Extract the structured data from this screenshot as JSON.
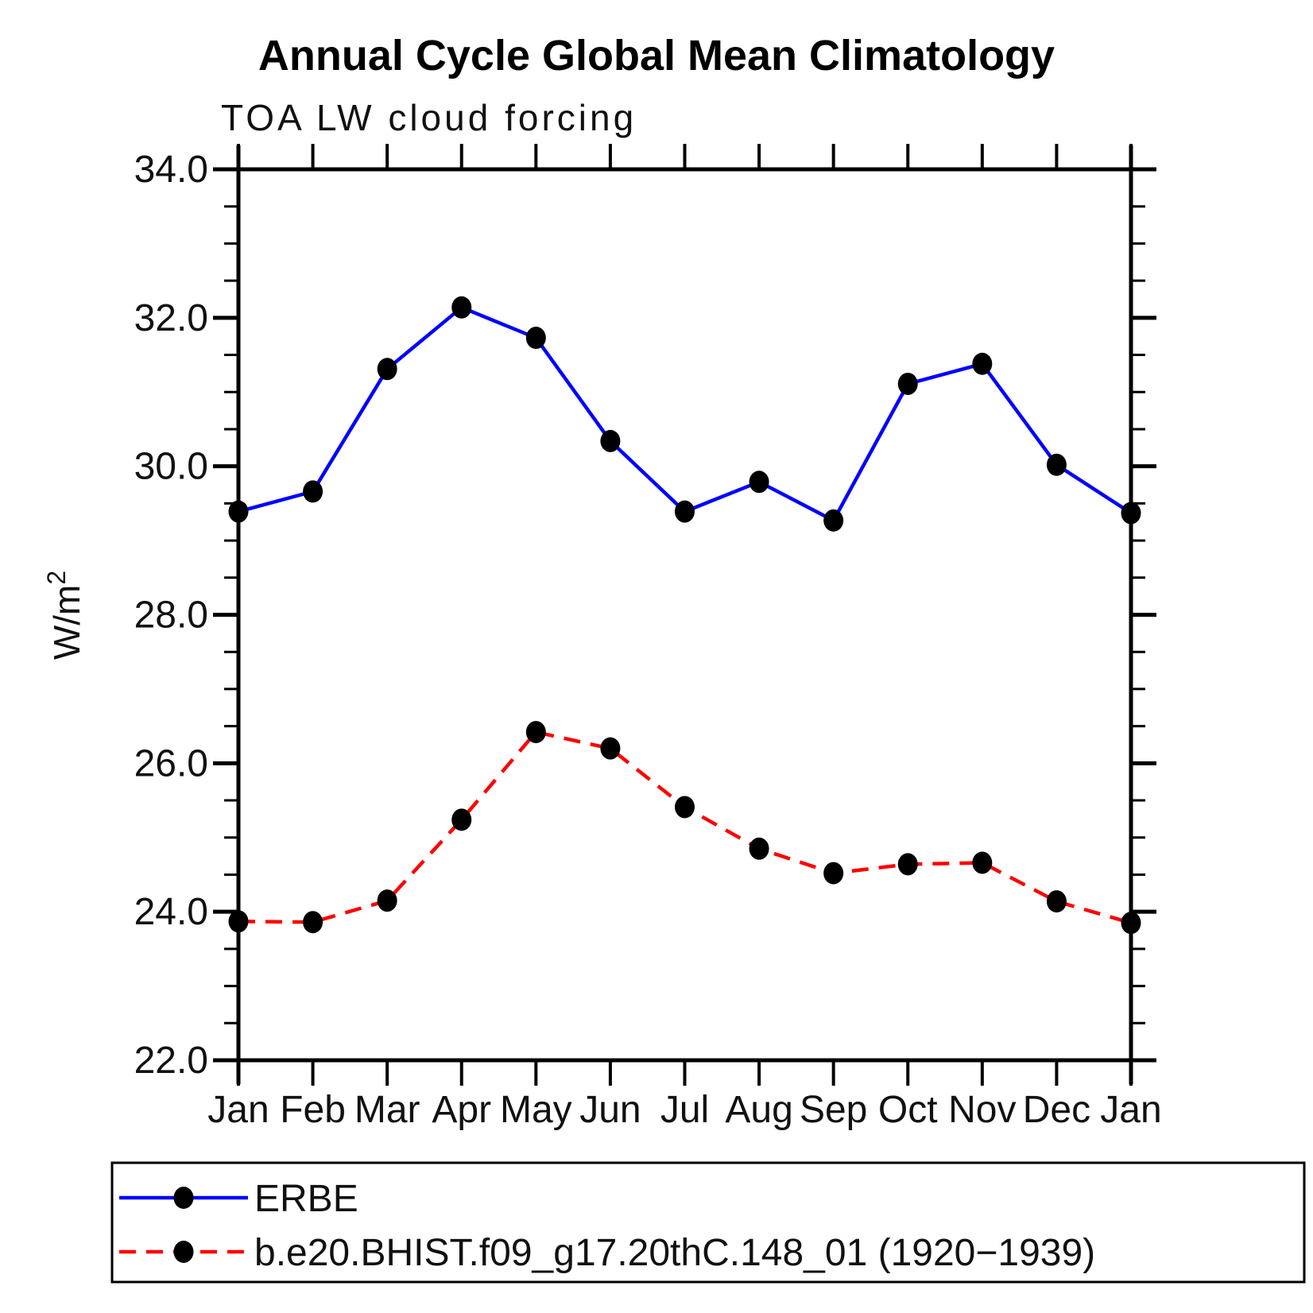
{
  "chart_data": {
    "type": "line",
    "title": "Annual Cycle Global Mean Climatology",
    "subtitle": "TOA LW cloud forcing",
    "ylabel_base": "W/m",
    "ylabel_exp": "2",
    "x_categories": [
      "Jan",
      "Feb",
      "Mar",
      "Apr",
      "May",
      "Jun",
      "Jul",
      "Aug",
      "Sep",
      "Oct",
      "Nov",
      "Dec",
      "Jan"
    ],
    "ylim": [
      22.0,
      34.0
    ],
    "ytick_major_step": 2.0,
    "ytick_minor_step": 0.5,
    "ytick_labels": [
      "22.0",
      "24.0",
      "26.0",
      "28.0",
      "30.0",
      "32.0",
      "34.0"
    ],
    "grid": false,
    "legend_position": "bottom-left-box",
    "axis_color": "#000000",
    "marker_color": "#000000",
    "series": [
      {
        "name": "ERBE",
        "color": "#0000ff",
        "line_style": "solid",
        "marker": "circle",
        "values": [
          29.39,
          29.66,
          31.31,
          32.14,
          31.73,
          30.34,
          29.39,
          29.79,
          29.27,
          31.11,
          31.38,
          30.02,
          29.37
        ]
      },
      {
        "name": "b.e20.BHIST.f09_g17.20thC.148_01 (1920−1939)",
        "color": "#ff0000",
        "line_style": "dashed",
        "marker": "circle",
        "values": [
          23.87,
          23.86,
          24.15,
          25.24,
          26.42,
          26.2,
          25.41,
          24.85,
          24.52,
          24.64,
          24.66,
          24.14,
          23.85
        ]
      }
    ]
  }
}
